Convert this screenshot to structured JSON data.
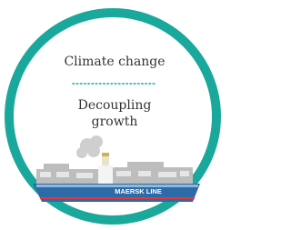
{
  "title": "Climate change",
  "subtitle_lines": [
    "Decoupling",
    "growth"
  ],
  "ship_label": "MAERSK LINE"
}
